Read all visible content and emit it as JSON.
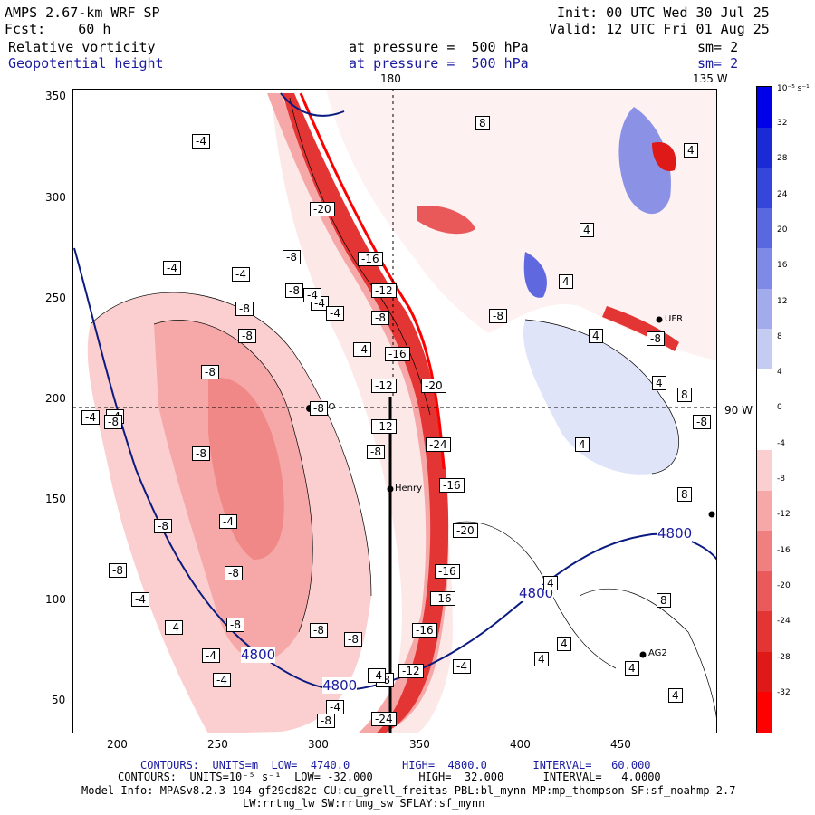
{
  "header": {
    "model": "AMPS 2.67-km WRF SP",
    "forecast": "Fcst:    60 h",
    "init": "Init: 00 UTC Wed 30 Jul 25",
    "valid": "Valid: 12 UTC Fri 01 Aug 25",
    "field1": "Relative vorticity",
    "field1_level": "at pressure =  500 hPa",
    "field1_sm": "sm= 2",
    "field2": "Geopotential height",
    "field2_level": "at pressure =  500 hPa",
    "field2_sm": "sm= 2"
  },
  "meridians": {
    "top_180": "180",
    "top_135w": "135 W",
    "right_90w": "90 W"
  },
  "axes": {
    "x_ticks": [
      "200",
      "250",
      "300",
      "350",
      "400",
      "450"
    ],
    "y_ticks": [
      "350",
      "300",
      "250",
      "200",
      "150",
      "100",
      "50"
    ]
  },
  "colorbar": {
    "units_top": "10⁻⁵ s⁻¹",
    "labels": [
      "32",
      "28",
      "24",
      "20",
      "16",
      "12",
      "8",
      "4",
      "0",
      "-4",
      "-8",
      "-12",
      "-16",
      "-20",
      "-24",
      "-28",
      "-32"
    ]
  },
  "stations": {
    "nco": "NCO",
    "henry": "Henry",
    "ag2": "AG2",
    "ufr": "UFR"
  },
  "height_labels": [
    "4800",
    "4800",
    "4800",
    "4800"
  ],
  "vorticity_labels": [
    "-4",
    "-4",
    "-4",
    "-8",
    "-8",
    "-8",
    "-4",
    "-20",
    "-16",
    "-12",
    "-8",
    "-4",
    "-4",
    "-16",
    "-20",
    "-12",
    "-12",
    "-24",
    "-16",
    "-20",
    "-16",
    "-16",
    "-16",
    "-12",
    "-8",
    "-8",
    "-8",
    "-4",
    "-8",
    "-8",
    "-8",
    "-8",
    "-4",
    "-4",
    "-4",
    "-8",
    "-8",
    "-4",
    "-8",
    "-8",
    "-4",
    "-4",
    "-4",
    "-8",
    "8",
    "4",
    "4",
    "4",
    "4",
    "8",
    "4",
    "4",
    "8",
    "4",
    "4",
    "4",
    "4",
    "4",
    "8",
    "-8",
    "-4",
    "-8",
    "-24",
    "-8",
    "-4",
    "-8",
    "-8",
    "-4",
    "-4"
  ],
  "footer": {
    "line1_contours": "CONTOURS:  UNITS=m  LOW=  4740.0        HIGH=  4800.0       INTERVAL=   60.000",
    "line2_contours": "CONTOURS:  UNITS=10⁻⁵ s⁻¹  LOW= -32.000       HIGH=  32.000      INTERVAL=   4.0000",
    "line3_model": "Model Info: MPASv8.2.3-194-gf29cd82c CU:cu_grell_freitas PBL:bl_mynn MP:mp_thompson SF:sf_noahmp 2.7",
    "line4_model": "LW:rrtmg_lw SW:rrtmg_sw SFLAY:sf_mynn"
  },
  "colors": {
    "neg_scale": [
      "#fde8e8",
      "#fbcfcf",
      "#f6a8a8",
      "#f08080",
      "#ea5a5a",
      "#e43535",
      "#df1818",
      "#ff0000"
    ],
    "pos_scale": [
      "#e0e4f8",
      "#c4ccf2",
      "#a2acec",
      "#7e8ae6",
      "#5a68e0",
      "#3746da",
      "#1a2ad4",
      "#0000e8"
    ],
    "height_contour": "#0a1a80"
  }
}
